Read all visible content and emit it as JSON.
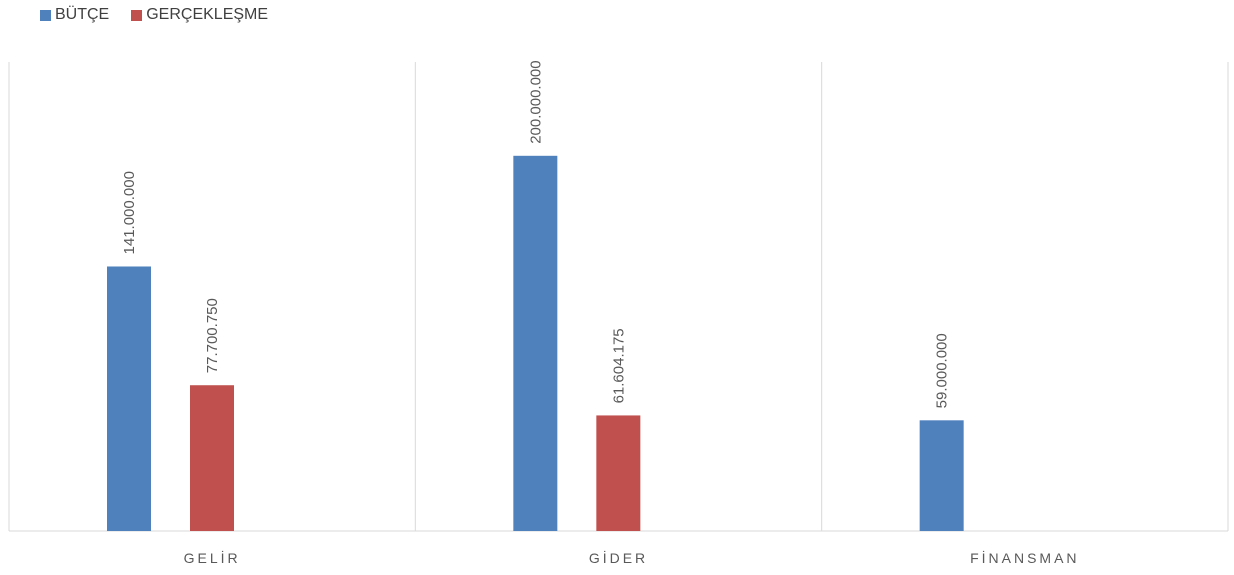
{
  "chart_data": {
    "type": "bar",
    "categories": [
      "GELİR",
      "GİDER",
      "FİNANSMAN"
    ],
    "series": [
      {
        "name": "BÜTÇE",
        "color": "#4F81BD",
        "values": [
          141000000,
          200000000,
          59000000
        ],
        "labels": [
          "141.000.000",
          "200.000.000",
          "59.000.000"
        ]
      },
      {
        "name": "GERÇEKLEŞME",
        "color": "#C0504D",
        "values": [
          77700750,
          61604175,
          null
        ],
        "labels": [
          "77.700.750",
          "61.604.175",
          ""
        ]
      }
    ],
    "ylim": [
      0,
      250000000
    ],
    "grid": "vertical-category-separators",
    "legend_position": "top-left"
  }
}
